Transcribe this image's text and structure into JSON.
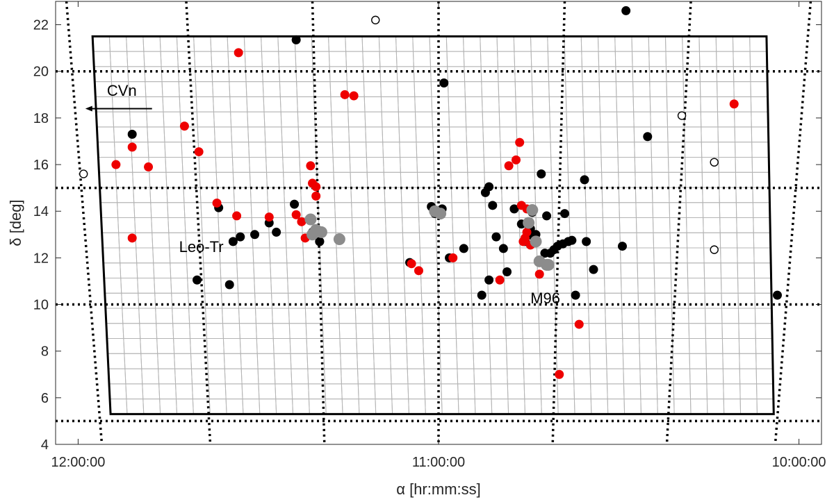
{
  "chart_data": {
    "type": "scatter",
    "xlabel": "α [hr:mm:ss]",
    "ylabel": "δ [deg]",
    "xlim_hours": [
      12.0625,
      9.9375
    ],
    "ylim": [
      4,
      23
    ],
    "x_ticks": [
      {
        "hours": 12.0,
        "label": "12:00:00"
      },
      {
        "hours": 11.0,
        "label": "11:00:00"
      },
      {
        "hours": 10.0,
        "label": "10:00:00"
      }
    ],
    "y_ticks": [
      4,
      6,
      8,
      10,
      12,
      14,
      16,
      18,
      20,
      22
    ],
    "grid": true,
    "grid_dec_lines": [
      5,
      10,
      15,
      20
    ],
    "grid_ra_lines_hours": [
      11.9833,
      11.6667,
      11.3333,
      11.0,
      10.6667,
      10.3333,
      10.0167
    ],
    "survey_footprint": {
      "top_left": [
        11.96,
        21.5
      ],
      "top_right": [
        10.09,
        21.5
      ],
      "bottom_right": [
        10.07,
        5.3
      ],
      "bottom_left": [
        11.91,
        5.3
      ]
    },
    "colors": {
      "black": "#000000",
      "red": "#ee0000",
      "gray": "#8c8c8c",
      "open": "#000000",
      "grid_cells": "#b4b4b4"
    },
    "series": [
      {
        "marker": "filled",
        "color": "black",
        "points": [
          [
            11.85,
            17.3
          ],
          [
            11.395,
            21.35
          ],
          [
            11.61,
            14.15
          ],
          [
            11.57,
            12.7
          ],
          [
            11.55,
            12.9
          ],
          [
            11.51,
            13.0
          ],
          [
            11.47,
            13.5
          ],
          [
            11.45,
            13.1
          ],
          [
            11.4,
            14.3
          ],
          [
            11.35,
            13.1
          ],
          [
            11.33,
            12.7
          ],
          [
            11.58,
            10.85
          ],
          [
            11.67,
            11.05
          ],
          [
            11.33,
            12.7
          ],
          [
            11.02,
            14.2
          ],
          [
            10.99,
            14.1
          ],
          [
            10.97,
            12.0
          ],
          [
            10.93,
            12.4
          ],
          [
            10.87,
            14.8
          ],
          [
            10.86,
            15.05
          ],
          [
            10.85,
            14.25
          ],
          [
            10.84,
            12.9
          ],
          [
            10.82,
            12.4
          ],
          [
            10.81,
            11.4
          ],
          [
            10.79,
            14.1
          ],
          [
            10.77,
            13.45
          ],
          [
            10.76,
            12.7
          ],
          [
            10.75,
            13.4
          ],
          [
            10.74,
            13.95
          ],
          [
            10.73,
            13.0
          ],
          [
            10.72,
            11.9
          ],
          [
            10.715,
            15.6
          ],
          [
            10.705,
            12.2
          ],
          [
            10.7,
            13.8
          ],
          [
            10.69,
            12.2
          ],
          [
            10.68,
            12.35
          ],
          [
            10.67,
            12.5
          ],
          [
            10.655,
            12.6
          ],
          [
            10.65,
            13.9
          ],
          [
            10.64,
            12.7
          ],
          [
            10.63,
            12.75
          ],
          [
            10.62,
            10.4
          ],
          [
            10.595,
            15.35
          ],
          [
            10.59,
            12.7
          ],
          [
            10.57,
            11.5
          ],
          [
            10.49,
            12.5
          ],
          [
            10.42,
            17.2
          ],
          [
            10.86,
            11.05
          ],
          [
            10.88,
            10.4
          ],
          [
            11.08,
            11.8
          ],
          [
            11.01,
            13.9
          ],
          [
            10.985,
            19.5
          ],
          [
            10.48,
            22.6
          ],
          [
            10.06,
            10.4
          ],
          [
            10.74,
            12.95
          ],
          [
            10.745,
            13.25
          ]
        ]
      },
      {
        "marker": "filled",
        "color": "red",
        "points": [
          [
            11.555,
            20.8
          ],
          [
            11.26,
            19.0
          ],
          [
            11.235,
            18.95
          ],
          [
            11.705,
            17.65
          ],
          [
            11.85,
            16.75
          ],
          [
            11.895,
            16.0
          ],
          [
            11.805,
            15.9
          ],
          [
            11.665,
            16.55
          ],
          [
            11.615,
            14.35
          ],
          [
            11.56,
            13.8
          ],
          [
            11.47,
            13.75
          ],
          [
            11.395,
            13.85
          ],
          [
            11.38,
            13.55
          ],
          [
            11.37,
            12.85
          ],
          [
            11.355,
            15.95
          ],
          [
            11.35,
            15.2
          ],
          [
            11.34,
            15.05
          ],
          [
            11.34,
            14.65
          ],
          [
            11.85,
            12.85
          ],
          [
            11.075,
            11.75
          ],
          [
            11.055,
            11.45
          ],
          [
            10.96,
            12.0
          ],
          [
            10.83,
            11.05
          ],
          [
            10.805,
            15.95
          ],
          [
            10.785,
            16.2
          ],
          [
            10.775,
            16.95
          ],
          [
            10.77,
            14.25
          ],
          [
            10.755,
            14.1
          ],
          [
            10.765,
            12.7
          ],
          [
            10.76,
            12.85
          ],
          [
            10.755,
            13.1
          ],
          [
            10.745,
            12.55
          ],
          [
            10.72,
            11.3
          ],
          [
            10.665,
            7.0
          ],
          [
            10.61,
            9.15
          ],
          [
            10.18,
            18.6
          ]
        ]
      },
      {
        "marker": "filled",
        "color": "gray",
        "points": [
          [
            11.355,
            13.65
          ],
          [
            11.35,
            13.0
          ],
          [
            11.34,
            13.2
          ],
          [
            11.325,
            13.1
          ],
          [
            11.275,
            12.8
          ],
          [
            11.01,
            14.0
          ],
          [
            10.995,
            13.9
          ],
          [
            10.75,
            13.5
          ],
          [
            10.74,
            14.05
          ],
          [
            10.73,
            12.7
          ],
          [
            10.72,
            11.85
          ],
          [
            10.7,
            11.7
          ],
          [
            10.695,
            11.7
          ]
        ]
      },
      {
        "marker": "open",
        "color": "open",
        "points": [
          [
            11.175,
            22.2
          ],
          [
            11.985,
            15.6
          ],
          [
            10.325,
            18.1
          ],
          [
            10.235,
            16.1
          ],
          [
            10.235,
            12.35
          ]
        ]
      }
    ],
    "annotations": {
      "cvn": {
        "text": "CVn",
        "at": [
          11.92,
          18.95
        ],
        "arrow_from": [
          11.795,
          18.4
        ],
        "arrow_to": [
          11.98,
          18.4
        ]
      },
      "leo_tr": {
        "text": "Leo-Tr",
        "at": [
          11.72,
          12.25
        ]
      },
      "m96": {
        "text": "M96",
        "at": [
          10.745,
          10.05
        ]
      }
    }
  }
}
